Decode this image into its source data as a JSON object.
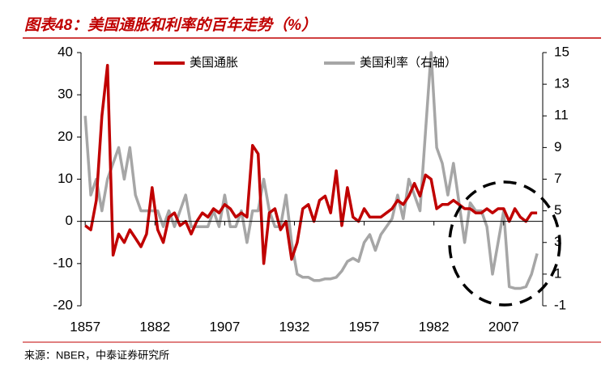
{
  "chart_data": {
    "type": "line",
    "title": "图表48：美国通胀和利率的百年走势（%）",
    "source": "来源：NBER，中泰证券研究所",
    "x": [
      1857,
      1859,
      1861,
      1863,
      1865,
      1867,
      1869,
      1871,
      1873,
      1875,
      1877,
      1879,
      1881,
      1883,
      1885,
      1887,
      1889,
      1891,
      1893,
      1895,
      1897,
      1899,
      1901,
      1903,
      1905,
      1907,
      1909,
      1911,
      1913,
      1915,
      1917,
      1919,
      1921,
      1923,
      1925,
      1927,
      1929,
      1931,
      1933,
      1935,
      1937,
      1939,
      1941,
      1943,
      1945,
      1947,
      1949,
      1951,
      1953,
      1955,
      1957,
      1959,
      1961,
      1963,
      1965,
      1967,
      1969,
      1971,
      1973,
      1975,
      1977,
      1979,
      1981,
      1983,
      1985,
      1987,
      1989,
      1991,
      1993,
      1995,
      1997,
      1999,
      2001,
      2003,
      2005,
      2007,
      2009,
      2011,
      2013,
      2015,
      2017,
      2019
    ],
    "xlim": [
      1855.5,
      2021
    ],
    "xticks": [
      1857,
      1882,
      1907,
      1932,
      1957,
      1982,
      2007
    ],
    "ylim": [
      -20,
      40
    ],
    "yticks": [
      -20,
      -10,
      0,
      10,
      20,
      30,
      40
    ],
    "y2lim": [
      -1,
      15
    ],
    "y2ticks": [
      -1,
      1,
      3,
      5,
      7,
      9,
      11,
      13,
      15
    ],
    "legend": "top",
    "series": [
      {
        "name": "美国通胀",
        "color": "#c00000",
        "axis": "y",
        "values": [
          -1,
          -2,
          5,
          25,
          37,
          -8,
          -3,
          -5,
          -2,
          -4,
          -6,
          -3,
          8,
          -2,
          -5,
          1,
          2,
          -1,
          0,
          -3,
          0,
          2,
          1,
          3,
          2,
          4,
          3,
          1,
          2,
          1,
          18,
          16,
          -10,
          2,
          3,
          -2,
          0,
          -9,
          -5,
          3,
          4,
          0,
          5,
          6,
          2,
          12,
          -1,
          8,
          1,
          0,
          3,
          1,
          1,
          1,
          2,
          3,
          5,
          4,
          6,
          9,
          6,
          11,
          10,
          3,
          4,
          4,
          5,
          4,
          3,
          3,
          2,
          2,
          3,
          2,
          3,
          3,
          0,
          3,
          1,
          0,
          2,
          2
        ]
      },
      {
        "name": "美国利率（右轴）",
        "color": "#a6a6a6",
        "axis": "y2",
        "values": [
          11,
          6,
          7,
          5,
          7,
          8,
          9,
          7,
          9,
          6,
          5,
          5,
          5,
          5,
          4,
          5,
          4,
          5,
          6,
          4,
          4,
          4,
          4,
          5,
          4,
          6,
          4,
          4,
          5,
          3,
          5,
          5,
          7,
          5,
          4,
          4,
          6,
          3,
          1,
          0.8,
          0.8,
          0.6,
          0.6,
          0.7,
          0.7,
          0.8,
          1.2,
          1.8,
          2,
          1.8,
          3,
          3.5,
          2.5,
          3.5,
          4,
          4.5,
          6,
          4.5,
          7,
          6,
          5,
          10,
          15,
          9,
          8,
          6,
          8,
          5.5,
          3,
          5.5,
          5,
          5,
          4,
          1,
          3,
          5,
          0.2,
          0.1,
          0.1,
          0.2,
          1,
          2.3
        ]
      }
    ]
  }
}
